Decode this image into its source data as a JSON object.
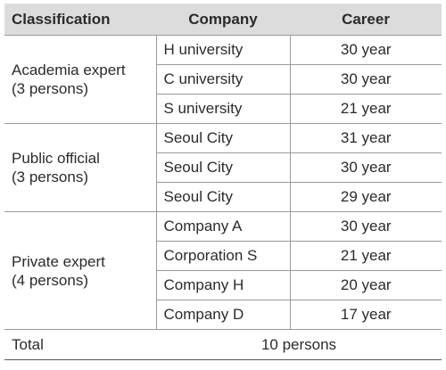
{
  "headers": {
    "classification": "Classification",
    "company": "Company",
    "career": "Career"
  },
  "groups": [
    {
      "name": "Academia expert",
      "count": "(3 persons)",
      "rows": [
        {
          "company": "H university",
          "career": "30 year"
        },
        {
          "company": "C university",
          "career": "30 year"
        },
        {
          "company": "S university",
          "career": "21 year"
        }
      ]
    },
    {
      "name": "Public official",
      "count": "(3 persons)",
      "rows": [
        {
          "company": "Seoul City",
          "career": "31 year"
        },
        {
          "company": "Seoul City",
          "career": "30 year"
        },
        {
          "company": "Seoul City",
          "career": "29 year"
        }
      ]
    },
    {
      "name": "Private expert",
      "count": "(4 persons)",
      "rows": [
        {
          "company": "Company A",
          "career": "30 year"
        },
        {
          "company": "Corporation S",
          "career": "21 year"
        },
        {
          "company": "Company H",
          "career": "20 year"
        },
        {
          "company": "Company D",
          "career": "17 year"
        }
      ]
    }
  ],
  "total": {
    "label": "Total",
    "value": "10 persons"
  }
}
